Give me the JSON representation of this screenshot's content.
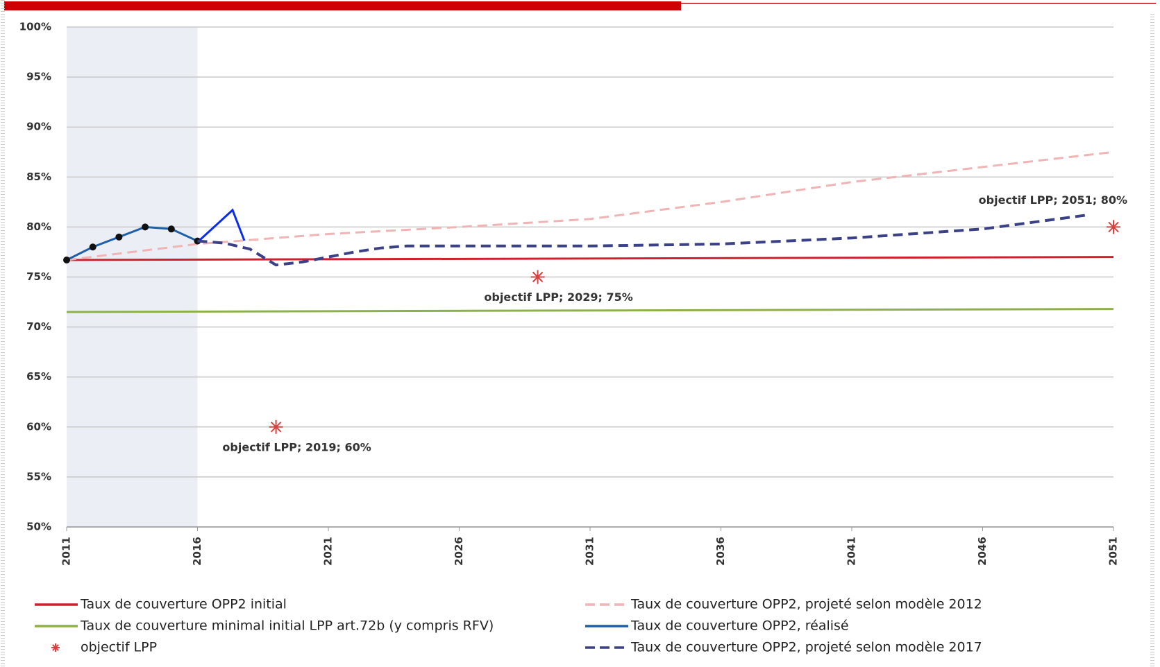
{
  "chart_data": {
    "type": "line",
    "xlim": [
      2011,
      2051
    ],
    "xticks": [
      2011,
      2016,
      2021,
      2026,
      2031,
      2036,
      2041,
      2046,
      2051
    ],
    "ylim": [
      50,
      100
    ],
    "yticks": [
      {
        "value": 50,
        "label": "50%"
      },
      {
        "value": 55,
        "label": "55%"
      },
      {
        "value": 60,
        "label": "60%"
      },
      {
        "value": 65,
        "label": "65%"
      },
      {
        "value": 70,
        "label": "70%"
      },
      {
        "value": 75,
        "label": "75%"
      },
      {
        "value": 80,
        "label": "80%"
      },
      {
        "value": 85,
        "label": "85%"
      },
      {
        "value": 90,
        "label": "90%"
      },
      {
        "value": 95,
        "label": "95%"
      },
      {
        "value": 100,
        "label": "100%"
      }
    ],
    "grid": true,
    "legend": "bottom",
    "series": [
      {
        "name": "Taux de couverture OPP2 initial",
        "color": "#d0202e",
        "style": "solid",
        "x": [
          2011,
          2051
        ],
        "values": [
          76.7,
          77.0
        ]
      },
      {
        "name": "Taux de couverture minimal initial LPP art.72b (y compris RFV)",
        "color": "#8db04a",
        "style": "solid",
        "x": [
          2011,
          2051
        ],
        "values": [
          71.5,
          71.8
        ]
      },
      {
        "name": "objectif LPP",
        "color": "#d9413e",
        "style": "marker",
        "x": [
          2019,
          2029,
          2051
        ],
        "values": [
          60,
          75,
          80
        ],
        "value_labels": [
          "objectif LPP; 2019; 60%",
          "objectif LPP; 2029; 75%",
          "objectif LPP; 2051; 80%"
        ]
      },
      {
        "name": "Taux de couverture OPP2, projeté selon modèle 2012",
        "color": "#f0b4b4",
        "style": "dashed",
        "x": [
          2011,
          2016,
          2021,
          2026,
          2031,
          2036,
          2041,
          2046,
          2051
        ],
        "values": [
          76.7,
          78.3,
          79.3,
          80.0,
          80.8,
          82.5,
          84.5,
          86.0,
          87.5
        ]
      },
      {
        "name": "Taux de couverture OPP2, réalisé",
        "color": "#1f5fa8",
        "style": "solid-dots",
        "x": [
          2011,
          2012,
          2013,
          2014,
          2015,
          2016
        ],
        "values": [
          76.7,
          78.0,
          79.0,
          80.0,
          79.8,
          78.6
        ]
      },
      {
        "name": "Taux de couverture OPP2, projeté selon modèle 2017",
        "color": "#3b4187",
        "style": "dashed",
        "x": [
          2016,
          2017,
          2018,
          2019,
          2020,
          2021,
          2022,
          2023,
          2024,
          2026,
          2031,
          2036,
          2041,
          2046,
          2050
        ],
        "values": [
          78.6,
          78.4,
          77.8,
          76.2,
          76.5,
          77.0,
          77.5,
          77.9,
          78.1,
          78.1,
          78.1,
          78.3,
          78.9,
          79.8,
          81.2
        ]
      }
    ]
  }
}
